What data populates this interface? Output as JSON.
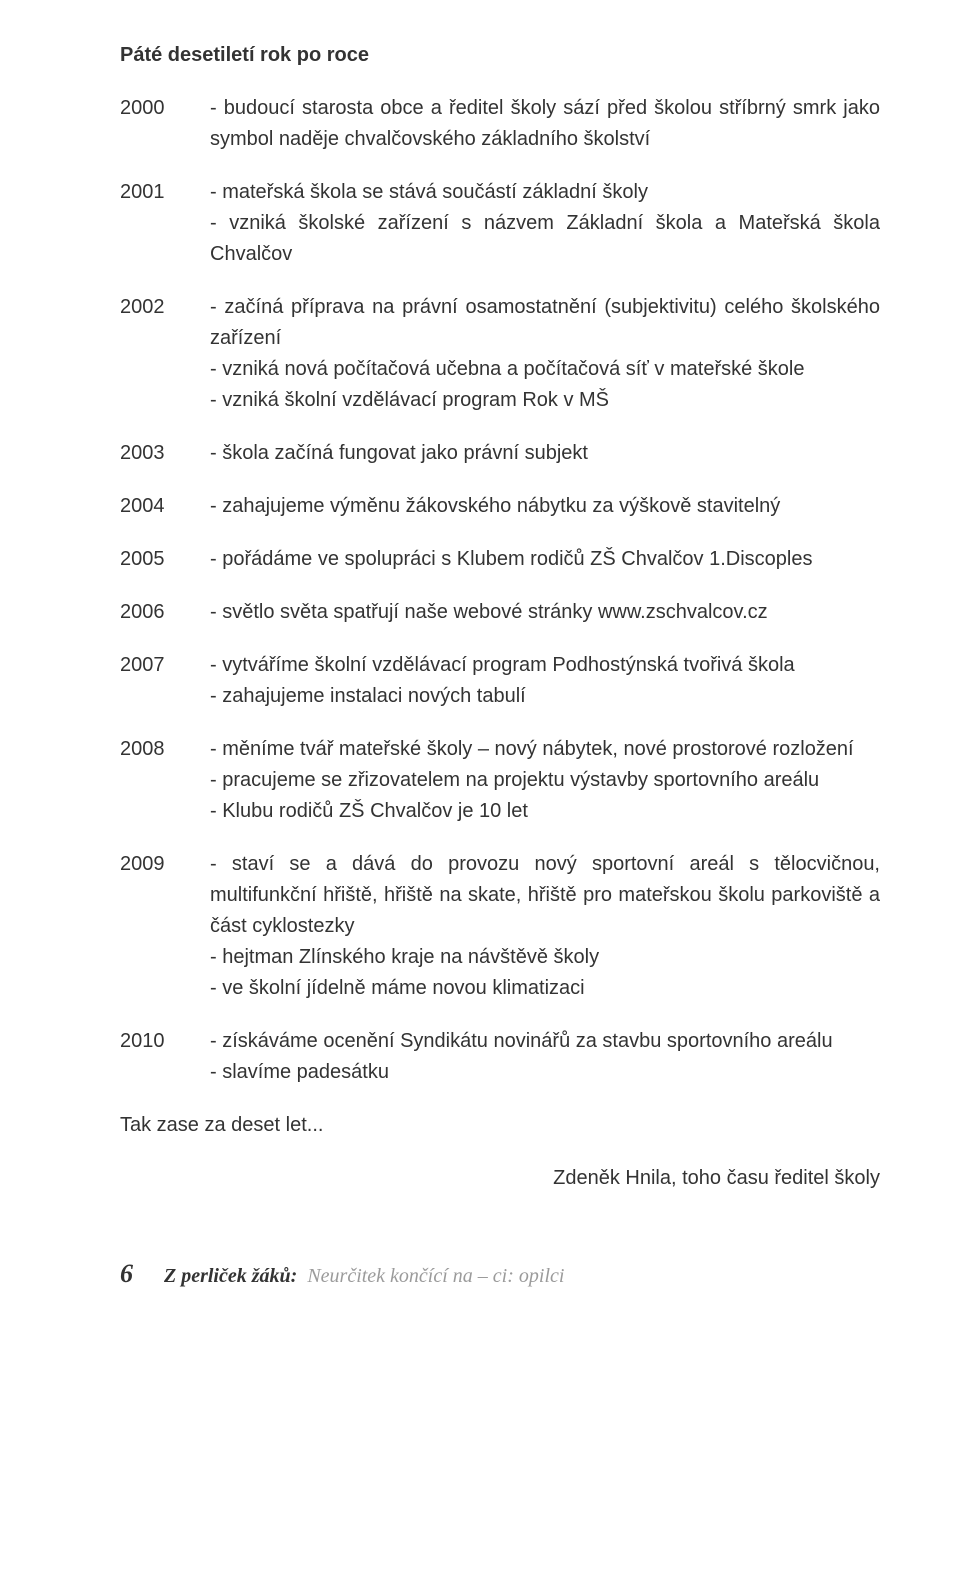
{
  "title": "Páté desetiletí rok po roce",
  "entries": [
    {
      "year": "2000",
      "lines": [
        "- budoucí starosta obce a ředitel školy sází před školou stříbrný smrk jako symbol naděje chvalčovského základního školství"
      ]
    },
    {
      "year": "2001",
      "lines": [
        "- mateřská škola se stává součástí základní školy",
        "- vzniká školské zařízení s názvem Základní škola a Mateřská škola Chvalčov"
      ]
    },
    {
      "year": "2002",
      "lines": [
        "- začíná příprava na právní osamostatnění (subjektivitu) celého školského zařízení",
        "- vzniká nová počítačová učebna a počítačová síť v mateřské škole",
        "- vzniká školní vzdělávací program Rok v MŠ"
      ]
    },
    {
      "year": "2003",
      "lines": [
        "- škola začíná fungovat jako právní subjekt"
      ]
    },
    {
      "year": "2004",
      "lines": [
        "- zahajujeme výměnu žákovského nábytku za výškově stavitelný"
      ]
    },
    {
      "year": "2005",
      "lines": [
        "- pořádáme ve spolupráci s Klubem rodičů ZŠ Chvalčov 1.Discoples"
      ]
    },
    {
      "year": "2006",
      "lines": [
        "- světlo světa spatřují naše webové stránky www.zschvalcov.cz"
      ]
    },
    {
      "year": "2007",
      "lines": [
        "- vytváříme školní vzdělávací program Podhostýnská tvořivá škola",
        "- zahajujeme instalaci nových tabulí"
      ]
    },
    {
      "year": "2008",
      "lines": [
        "- měníme tvář mateřské školy – nový nábytek, nové prostorové rozložení",
        "- pracujeme se zřizovatelem na projektu výstavby sportovního areálu",
        "- Klubu rodičů ZŠ Chvalčov je 10 let"
      ]
    },
    {
      "year": "2009",
      "lines": [
        "- staví se a dává do provozu nový sportovní areál s tělocvičnou, multifunkční hřiště, hřiště na skate, hřiště pro mateřskou školu parkoviště a část cyklostezky",
        "- hejtman Zlínského kraje na návštěvě školy",
        "- ve školní jídelně máme novou klimatizaci"
      ]
    },
    {
      "year": "2010",
      "lines": [
        "- získáváme ocenění Syndikátu novinářů za stavbu sportovního areálu",
        "- slavíme padesátku"
      ]
    }
  ],
  "closing": "Tak zase za deset let...",
  "signature": "Zdeněk Hnila, toho času ředitel školy",
  "footer": {
    "page_number": "6",
    "quote_label": "Z perliček žáků:",
    "quote_text": "Neurčitek končící na – ci: opilci"
  }
}
